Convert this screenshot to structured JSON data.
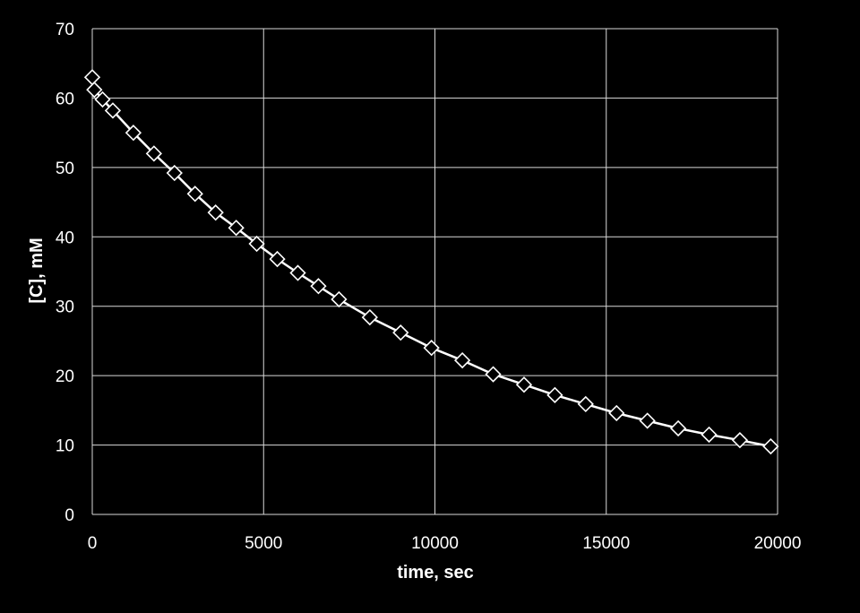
{
  "chart_data": {
    "type": "line",
    "title": "",
    "xlabel": "time, sec",
    "ylabel": "[C], mM",
    "xlim": [
      0,
      20000
    ],
    "ylim": [
      0,
      70
    ],
    "x_ticks": [
      0,
      5000,
      10000,
      15000,
      20000
    ],
    "y_ticks": [
      0,
      10,
      20,
      30,
      40,
      50,
      60,
      70
    ],
    "grid": true,
    "legend": "none",
    "colors": {
      "background": "#000000",
      "grid": "#d9d9d9",
      "series": "#ffffff",
      "text": "#ffffff"
    },
    "series": [
      {
        "marker": "diamond",
        "marker_fill": "#000000",
        "x": [
          0,
          60,
          300,
          600,
          1200,
          1800,
          2400,
          3000,
          3600,
          4200,
          4800,
          5400,
          6000,
          6600,
          7200,
          8100,
          9000,
          9900,
          10800,
          11700,
          12600,
          13500,
          14400,
          15300,
          16200,
          17100,
          18000,
          18900,
          19800
        ],
        "y": [
          63.0,
          61.2,
          59.8,
          58.2,
          55.0,
          52.0,
          49.2,
          46.2,
          43.5,
          41.3,
          39.0,
          36.8,
          34.8,
          32.9,
          31.0,
          28.4,
          26.2,
          24.0,
          22.2,
          20.2,
          18.7,
          17.2,
          15.9,
          14.6,
          13.5,
          12.4,
          11.5,
          10.7,
          9.8
        ]
      }
    ]
  }
}
